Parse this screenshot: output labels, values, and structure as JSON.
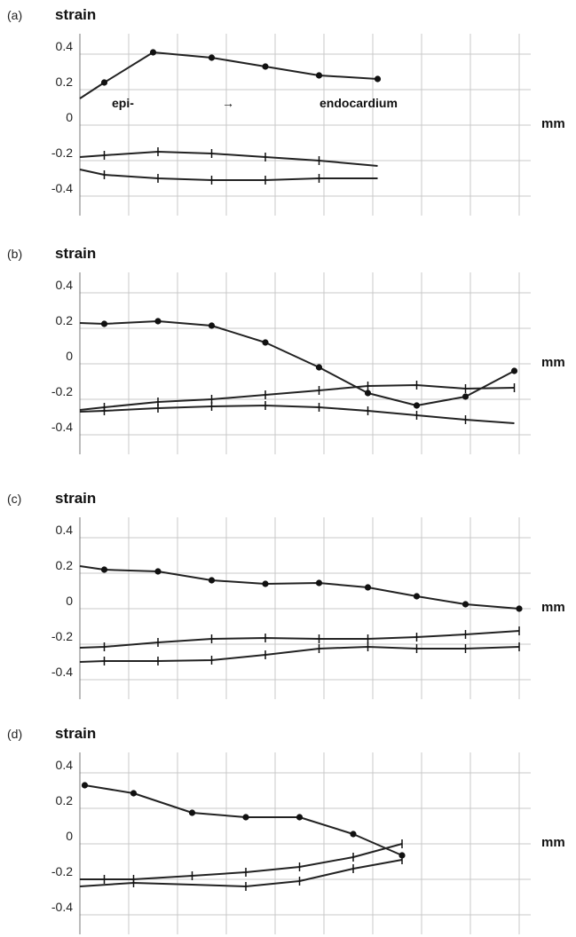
{
  "chart_data": [
    {
      "type": "line",
      "panel_label": "(a)",
      "title": "strain",
      "xlabel": "mm",
      "ylim": [
        -0.5,
        0.5
      ],
      "yticks": [
        0.4,
        0.2,
        0,
        -0.2,
        -0.4
      ],
      "ytick_labels": [
        "0.4",
        "0.2",
        "0",
        "-0.2",
        "-0.4"
      ],
      "grid": true,
      "annotations": [
        "epi-",
        "→",
        "endocardium"
      ],
      "series": [
        {
          "marker": "dot",
          "points": [
            [
              0,
              0.15
            ],
            [
              0.5,
              0.24
            ],
            [
              1.5,
              0.41
            ],
            [
              2.7,
              0.38
            ],
            [
              3.8,
              0.33
            ],
            [
              4.9,
              0.28
            ],
            [
              6.1,
              0.26
            ]
          ],
          "marked": [
            false,
            true,
            true,
            true,
            true,
            true,
            true
          ]
        },
        {
          "marker": "cross",
          "points": [
            [
              0,
              -0.18
            ],
            [
              0.5,
              -0.17
            ],
            [
              1.6,
              -0.15
            ],
            [
              2.7,
              -0.16
            ],
            [
              3.8,
              -0.18
            ],
            [
              4.9,
              -0.2
            ],
            [
              6.1,
              -0.23
            ]
          ],
          "marked": [
            false,
            true,
            true,
            true,
            true,
            true,
            false
          ]
        },
        {
          "marker": "cross",
          "points": [
            [
              0,
              -0.25
            ],
            [
              0.5,
              -0.28
            ],
            [
              1.6,
              -0.3
            ],
            [
              2.7,
              -0.31
            ],
            [
              3.8,
              -0.31
            ],
            [
              4.9,
              -0.3
            ],
            [
              6.1,
              -0.3
            ]
          ],
          "marked": [
            false,
            true,
            true,
            true,
            true,
            true,
            false
          ]
        }
      ]
    },
    {
      "type": "line",
      "panel_label": "(b)",
      "title": "strain",
      "xlabel": "mm",
      "ylim": [
        -0.5,
        0.5
      ],
      "yticks": [
        0.4,
        0.2,
        0,
        -0.2,
        -0.4
      ],
      "ytick_labels": [
        "0.4",
        "0.2",
        "0",
        "-0.2",
        "-0.4"
      ],
      "grid": true,
      "annotations": [],
      "series": [
        {
          "marker": "dot",
          "points": [
            [
              0,
              0.23
            ],
            [
              0.5,
              0.225
            ],
            [
              1.6,
              0.24
            ],
            [
              2.7,
              0.215
            ],
            [
              3.8,
              0.12
            ],
            [
              4.9,
              -0.02
            ],
            [
              5.9,
              -0.165
            ],
            [
              6.9,
              -0.235
            ],
            [
              7.9,
              -0.185
            ],
            [
              8.9,
              -0.04
            ]
          ],
          "marked": [
            false,
            true,
            true,
            true,
            true,
            true,
            true,
            true,
            true,
            true
          ]
        },
        {
          "marker": "cross",
          "points": [
            [
              0,
              -0.26
            ],
            [
              0.5,
              -0.245
            ],
            [
              1.6,
              -0.215
            ],
            [
              2.7,
              -0.2
            ],
            [
              3.8,
              -0.175
            ],
            [
              4.9,
              -0.15
            ],
            [
              5.9,
              -0.125
            ],
            [
              6.9,
              -0.12
            ],
            [
              7.9,
              -0.14
            ],
            [
              8.9,
              -0.135
            ]
          ],
          "marked": [
            false,
            true,
            true,
            true,
            true,
            true,
            true,
            true,
            true,
            true
          ]
        },
        {
          "marker": "cross",
          "points": [
            [
              0,
              -0.27
            ],
            [
              0.5,
              -0.265
            ],
            [
              1.6,
              -0.25
            ],
            [
              2.7,
              -0.24
            ],
            [
              3.8,
              -0.235
            ],
            [
              4.9,
              -0.245
            ],
            [
              5.9,
              -0.265
            ],
            [
              6.9,
              -0.29
            ],
            [
              7.9,
              -0.315
            ],
            [
              8.9,
              -0.335
            ]
          ],
          "marked": [
            false,
            true,
            true,
            true,
            true,
            true,
            true,
            true,
            true,
            false
          ]
        }
      ]
    },
    {
      "type": "line",
      "panel_label": "(c)",
      "title": "strain",
      "xlabel": "mm",
      "ylim": [
        -0.5,
        0.5
      ],
      "yticks": [
        0.4,
        0.2,
        0,
        -0.2,
        -0.4
      ],
      "ytick_labels": [
        "0.4",
        "0.2",
        "0",
        "-0.2",
        "-0.4"
      ],
      "grid": true,
      "annotations": [],
      "series": [
        {
          "marker": "dot",
          "points": [
            [
              0,
              0.24
            ],
            [
              0.5,
              0.22
            ],
            [
              1.6,
              0.21
            ],
            [
              2.7,
              0.16
            ],
            [
              3.8,
              0.14
            ],
            [
              4.9,
              0.145
            ],
            [
              5.9,
              0.12
            ],
            [
              6.9,
              0.07
            ],
            [
              7.9,
              0.025
            ],
            [
              9.0,
              0.0
            ]
          ],
          "marked": [
            false,
            true,
            true,
            true,
            true,
            true,
            true,
            true,
            true,
            true
          ]
        },
        {
          "marker": "cross",
          "points": [
            [
              0,
              -0.22
            ],
            [
              0.5,
              -0.215
            ],
            [
              1.6,
              -0.19
            ],
            [
              2.7,
              -0.17
            ],
            [
              3.8,
              -0.165
            ],
            [
              4.9,
              -0.17
            ],
            [
              5.9,
              -0.17
            ],
            [
              6.9,
              -0.16
            ],
            [
              7.9,
              -0.145
            ],
            [
              9.0,
              -0.125
            ]
          ],
          "marked": [
            false,
            true,
            true,
            true,
            true,
            true,
            true,
            true,
            true,
            true
          ]
        },
        {
          "marker": "cross",
          "points": [
            [
              0,
              -0.3
            ],
            [
              0.5,
              -0.295
            ],
            [
              1.6,
              -0.295
            ],
            [
              2.7,
              -0.29
            ],
            [
              3.8,
              -0.26
            ],
            [
              4.9,
              -0.225
            ],
            [
              5.9,
              -0.215
            ],
            [
              6.9,
              -0.225
            ],
            [
              7.9,
              -0.225
            ],
            [
              9.0,
              -0.215
            ]
          ],
          "marked": [
            false,
            true,
            true,
            true,
            true,
            true,
            true,
            true,
            true,
            true
          ]
        }
      ]
    },
    {
      "type": "line",
      "panel_label": "(d)",
      "title": "strain",
      "xlabel": "mm",
      "ylim": [
        -0.5,
        0.5
      ],
      "yticks": [
        0.4,
        0.2,
        0,
        -0.2,
        -0.4
      ],
      "ytick_labels": [
        "0.4",
        "0.2",
        "0",
        "-0.2",
        "-0.4"
      ],
      "grid": true,
      "annotations": [],
      "series": [
        {
          "marker": "dot",
          "points": [
            [
              0.1,
              0.33
            ],
            [
              1.1,
              0.285
            ],
            [
              2.3,
              0.175
            ],
            [
              3.4,
              0.15
            ],
            [
              4.5,
              0.15
            ],
            [
              5.6,
              0.055
            ],
            [
              6.6,
              -0.065
            ]
          ],
          "marked": [
            true,
            true,
            true,
            true,
            true,
            true,
            true
          ]
        },
        {
          "marker": "cross",
          "points": [
            [
              0,
              -0.2
            ],
            [
              0.5,
              -0.2
            ],
            [
              1.1,
              -0.2
            ],
            [
              2.3,
              -0.18
            ],
            [
              3.4,
              -0.16
            ],
            [
              4.5,
              -0.13
            ],
            [
              5.6,
              -0.075
            ],
            [
              6.6,
              0.0
            ]
          ],
          "marked": [
            false,
            true,
            true,
            true,
            true,
            true,
            true,
            true
          ]
        },
        {
          "marker": "cross",
          "points": [
            [
              0,
              -0.24
            ],
            [
              1.1,
              -0.22
            ],
            [
              2.3,
              -0.23
            ],
            [
              3.4,
              -0.24
            ],
            [
              4.5,
              -0.21
            ],
            [
              5.6,
              -0.14
            ],
            [
              6.6,
              -0.09
            ]
          ],
          "marked": [
            false,
            true,
            false,
            true,
            true,
            true,
            true
          ]
        }
      ]
    }
  ]
}
